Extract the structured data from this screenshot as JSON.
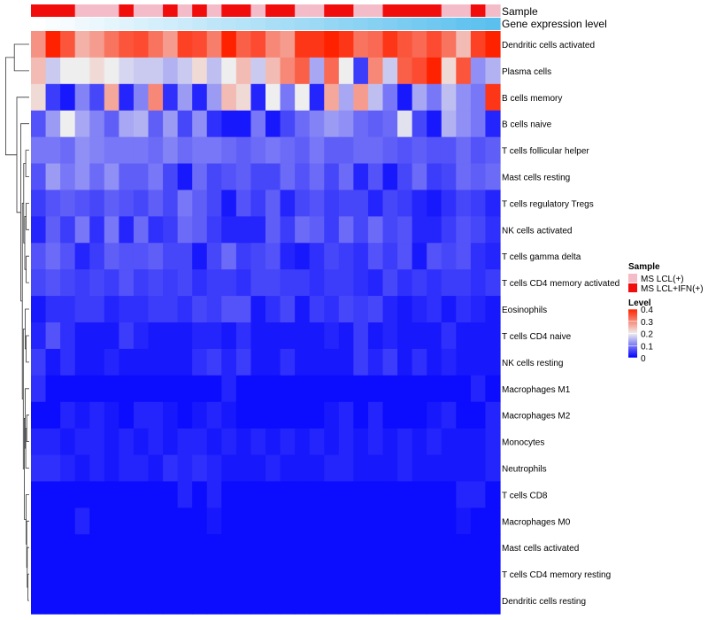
{
  "chart_data": {
    "type": "heatmap",
    "title": "",
    "annotation_tracks": [
      {
        "label": "Sample",
        "groups": [
          "LCL+IFN",
          "LCL+IFN",
          "LCL+IFN",
          "LCL",
          "LCL",
          "LCL",
          "LCL+IFN",
          "LCL",
          "LCL",
          "LCL+IFN",
          "LCL",
          "LCL+IFN",
          "LCL",
          "LCL+IFN",
          "LCL+IFN",
          "LCL",
          "LCL+IFN",
          "LCL+IFN",
          "LCL",
          "LCL",
          "LCL+IFN",
          "LCL+IFN",
          "LCL",
          "LCL",
          "LCL+IFN",
          "LCL+IFN",
          "LCL+IFN",
          "LCL+IFN",
          "LCL",
          "LCL",
          "LCL+IFN",
          "LCL"
        ]
      },
      {
        "label": "Gene expression level",
        "values": [
          0.0,
          0.03,
          0.06,
          0.1,
          0.13,
          0.16,
          0.19,
          0.23,
          0.26,
          0.29,
          0.32,
          0.35,
          0.39,
          0.42,
          0.45,
          0.48,
          0.52,
          0.55,
          0.58,
          0.61,
          0.65,
          0.68,
          0.71,
          0.74,
          0.77,
          0.81,
          0.84,
          0.87,
          0.9,
          0.94,
          0.97,
          1.0
        ]
      }
    ],
    "rows": [
      "Dendritic cells activated",
      "Plasma cells",
      "B cells memory",
      "B cells naive",
      "T cells follicular helper",
      "Mast cells resting",
      "T cells regulatory  Tregs",
      "NK cells activated",
      "T cells gamma delta",
      "T cells CD4 memory activated",
      "Eosinophils",
      "T cells CD4 naive",
      "NK cells resting",
      "Macrophages M1",
      "Macrophages M2",
      "Monocytes",
      "Neutrophils",
      "T cells CD8",
      "Macrophages M0",
      "Mast cells activated",
      "T cells CD4 memory resting",
      "Dendritic cells resting"
    ],
    "values": [
      [
        0.29,
        0.4,
        0.35,
        0.26,
        0.28,
        0.32,
        0.35,
        0.36,
        0.32,
        0.28,
        0.37,
        0.36,
        0.31,
        0.4,
        0.34,
        0.36,
        0.3,
        0.28,
        0.38,
        0.38,
        0.4,
        0.38,
        0.32,
        0.33,
        0.38,
        0.35,
        0.33,
        0.36,
        0.32,
        0.25,
        0.37,
        0.42
      ],
      [
        0.25,
        0.17,
        0.2,
        0.2,
        0.22,
        0.2,
        0.18,
        0.17,
        0.17,
        0.15,
        0.17,
        0.22,
        0.16,
        0.2,
        0.25,
        0.17,
        0.25,
        0.3,
        0.34,
        0.14,
        0.33,
        0.2,
        0.05,
        0.3,
        0.17,
        0.34,
        0.36,
        0.41,
        0.22,
        0.35,
        0.12,
        0.15
      ],
      [
        0.22,
        0.05,
        0.02,
        0.11,
        0.06,
        0.27,
        0.03,
        0.11,
        0.3,
        0.04,
        0.13,
        0.03,
        0.13,
        0.25,
        0.22,
        0.03,
        0.2,
        0.1,
        0.2,
        0.03,
        0.27,
        0.14,
        0.28,
        0.16,
        0.1,
        0.02,
        0.14,
        0.1,
        0.16,
        0.12,
        0.1,
        0.38
      ],
      [
        0.07,
        0.13,
        0.2,
        0.14,
        0.11,
        0.08,
        0.14,
        0.15,
        0.08,
        0.13,
        0.06,
        0.12,
        0.04,
        0.02,
        0.02,
        0.1,
        0.02,
        0.06,
        0.09,
        0.11,
        0.13,
        0.12,
        0.09,
        0.08,
        0.09,
        0.19,
        0.06,
        0.02,
        0.15,
        0.12,
        0.1,
        0.03
      ],
      [
        0.1,
        0.1,
        0.09,
        0.12,
        0.11,
        0.1,
        0.1,
        0.1,
        0.09,
        0.11,
        0.09,
        0.1,
        0.1,
        0.09,
        0.08,
        0.09,
        0.1,
        0.09,
        0.08,
        0.1,
        0.08,
        0.08,
        0.09,
        0.09,
        0.08,
        0.07,
        0.08,
        0.07,
        0.07,
        0.09,
        0.07,
        0.08
      ],
      [
        0.07,
        0.13,
        0.1,
        0.12,
        0.09,
        0.12,
        0.08,
        0.08,
        0.1,
        0.06,
        0.02,
        0.09,
        0.06,
        0.07,
        0.08,
        0.06,
        0.06,
        0.09,
        0.07,
        0.09,
        0.06,
        0.09,
        0.03,
        0.07,
        0.02,
        0.06,
        0.09,
        0.05,
        0.06,
        0.09,
        0.08,
        0.09
      ],
      [
        0.05,
        0.07,
        0.08,
        0.07,
        0.06,
        0.08,
        0.07,
        0.06,
        0.08,
        0.06,
        0.1,
        0.08,
        0.06,
        0.02,
        0.07,
        0.05,
        0.08,
        0.03,
        0.06,
        0.07,
        0.05,
        0.06,
        0.06,
        0.03,
        0.06,
        0.05,
        0.03,
        0.02,
        0.04,
        0.06,
        0.05,
        0.03
      ],
      [
        0.03,
        0.08,
        0.05,
        0.1,
        0.04,
        0.1,
        0.03,
        0.09,
        0.04,
        0.05,
        0.09,
        0.08,
        0.05,
        0.03,
        0.03,
        0.03,
        0.08,
        0.05,
        0.09,
        0.08,
        0.05,
        0.09,
        0.06,
        0.09,
        0.06,
        0.07,
        0.03,
        0.03,
        0.05,
        0.07,
        0.06,
        0.04
      ],
      [
        0.07,
        0.09,
        0.07,
        0.03,
        0.05,
        0.08,
        0.07,
        0.07,
        0.08,
        0.06,
        0.06,
        0.02,
        0.06,
        0.09,
        0.05,
        0.06,
        0.07,
        0.03,
        0.02,
        0.04,
        0.06,
        0.05,
        0.04,
        0.07,
        0.05,
        0.07,
        0.02,
        0.07,
        0.06,
        0.07,
        0.04,
        0.03
      ],
      [
        0.06,
        0.07,
        0.06,
        0.05,
        0.06,
        0.05,
        0.07,
        0.05,
        0.06,
        0.05,
        0.06,
        0.04,
        0.05,
        0.05,
        0.04,
        0.06,
        0.06,
        0.05,
        0.05,
        0.04,
        0.05,
        0.05,
        0.04,
        0.03,
        0.06,
        0.04,
        0.05,
        0.04,
        0.05,
        0.05,
        0.04,
        0.05
      ],
      [
        0.02,
        0.04,
        0.04,
        0.05,
        0.05,
        0.03,
        0.04,
        0.04,
        0.05,
        0.05,
        0.04,
        0.06,
        0.05,
        0.07,
        0.07,
        0.02,
        0.04,
        0.06,
        0.02,
        0.05,
        0.04,
        0.06,
        0.05,
        0.06,
        0.03,
        0.02,
        0.03,
        0.04,
        0.02,
        0.04,
        0.03,
        0.02
      ],
      [
        0.03,
        0.07,
        0.04,
        0.02,
        0.02,
        0.02,
        0.05,
        0.03,
        0.02,
        0.02,
        0.02,
        0.03,
        0.03,
        0.02,
        0.04,
        0.02,
        0.02,
        0.02,
        0.02,
        0.02,
        0.03,
        0.02,
        0.05,
        0.02,
        0.03,
        0.02,
        0.02,
        0.02,
        0.04,
        0.02,
        0.02,
        0.02
      ],
      [
        0.05,
        0.02,
        0.04,
        0.02,
        0.02,
        0.03,
        0.02,
        0.02,
        0.02,
        0.02,
        0.02,
        0.04,
        0.05,
        0.03,
        0.05,
        0.02,
        0.02,
        0.04,
        0.02,
        0.02,
        0.02,
        0.02,
        0.05,
        0.03,
        0.05,
        0.02,
        0.04,
        0.02,
        0.03,
        0.02,
        0.02,
        0.02
      ],
      [
        0.04,
        0.01,
        0.01,
        0.01,
        0.01,
        0.01,
        0.01,
        0.01,
        0.01,
        0.01,
        0.01,
        0.01,
        0.01,
        0.03,
        0.01,
        0.01,
        0.01,
        0.01,
        0.01,
        0.01,
        0.01,
        0.01,
        0.01,
        0.01,
        0.01,
        0.01,
        0.01,
        0.01,
        0.01,
        0.01,
        0.03,
        0.01
      ],
      [
        0.01,
        0.01,
        0.03,
        0.02,
        0.03,
        0.02,
        0.01,
        0.03,
        0.03,
        0.02,
        0.01,
        0.02,
        0.03,
        0.02,
        0.01,
        0.01,
        0.01,
        0.01,
        0.01,
        0.01,
        0.02,
        0.03,
        0.01,
        0.03,
        0.01,
        0.01,
        0.01,
        0.02,
        0.03,
        0.01,
        0.01,
        0.03
      ],
      [
        0.03,
        0.03,
        0.02,
        0.03,
        0.03,
        0.02,
        0.03,
        0.02,
        0.03,
        0.02,
        0.03,
        0.03,
        0.02,
        0.03,
        0.02,
        0.03,
        0.02,
        0.03,
        0.02,
        0.03,
        0.02,
        0.03,
        0.02,
        0.03,
        0.02,
        0.03,
        0.02,
        0.03,
        0.02,
        0.02,
        0.02,
        0.03
      ],
      [
        0.04,
        0.04,
        0.03,
        0.02,
        0.03,
        0.02,
        0.03,
        0.03,
        0.02,
        0.04,
        0.03,
        0.04,
        0.03,
        0.02,
        0.02,
        0.02,
        0.03,
        0.02,
        0.02,
        0.02,
        0.03,
        0.03,
        0.02,
        0.02,
        0.02,
        0.03,
        0.02,
        0.02,
        0.02,
        0.02,
        0.02,
        0.03
      ],
      [
        0.01,
        0.01,
        0.01,
        0.01,
        0.01,
        0.01,
        0.01,
        0.01,
        0.01,
        0.01,
        0.03,
        0.01,
        0.03,
        0.01,
        0.01,
        0.01,
        0.01,
        0.01,
        0.01,
        0.01,
        0.01,
        0.01,
        0.01,
        0.01,
        0.01,
        0.01,
        0.01,
        0.01,
        0.01,
        0.03,
        0.03,
        0.01
      ],
      [
        0.01,
        0.01,
        0.01,
        0.03,
        0.01,
        0.01,
        0.01,
        0.01,
        0.01,
        0.01,
        0.01,
        0.01,
        0.02,
        0.01,
        0.01,
        0.01,
        0.01,
        0.01,
        0.01,
        0.01,
        0.01,
        0.01,
        0.01,
        0.01,
        0.01,
        0.01,
        0.01,
        0.01,
        0.01,
        0.02,
        0.01,
        0.01
      ],
      [
        0.01,
        0.01,
        0.01,
        0.01,
        0.01,
        0.01,
        0.01,
        0.01,
        0.01,
        0.01,
        0.01,
        0.01,
        0.01,
        0.01,
        0.01,
        0.01,
        0.01,
        0.01,
        0.01,
        0.01,
        0.01,
        0.01,
        0.01,
        0.01,
        0.01,
        0.01,
        0.01,
        0.01,
        0.01,
        0.01,
        0.01,
        0.01
      ],
      [
        0.01,
        0.01,
        0.01,
        0.01,
        0.01,
        0.01,
        0.01,
        0.01,
        0.01,
        0.01,
        0.01,
        0.01,
        0.01,
        0.01,
        0.01,
        0.01,
        0.01,
        0.01,
        0.01,
        0.01,
        0.01,
        0.01,
        0.01,
        0.01,
        0.01,
        0.01,
        0.01,
        0.01,
        0.01,
        0.01,
        0.01,
        0.01
      ],
      [
        0.01,
        0.01,
        0.01,
        0.01,
        0.01,
        0.01,
        0.01,
        0.01,
        0.01,
        0.01,
        0.01,
        0.01,
        0.01,
        0.01,
        0.01,
        0.01,
        0.01,
        0.01,
        0.01,
        0.01,
        0.01,
        0.01,
        0.01,
        0.01,
        0.01,
        0.01,
        0.01,
        0.01,
        0.01,
        0.01,
        0.01,
        0.01
      ]
    ],
    "row_dendrogram": true,
    "legend": {
      "sample_title": "Sample",
      "sample_entries": [
        {
          "label": "MS LCL(+)",
          "color": "#F4BBC9"
        },
        {
          "label": "MS LCL+IFN(+)",
          "color": "#F20D0D"
        }
      ],
      "level_title": "Level",
      "level_ticks": [
        "0.4",
        "0.3",
        "0.2",
        "0.1",
        "0"
      ],
      "level_range": [
        0,
        0.4
      ]
    },
    "colors": {
      "low": "#0000FF",
      "mid": "#EEEEEE",
      "high": "#FF2200",
      "gene_track_start": "#FFFFFF",
      "gene_track_end": "#5BC0EE"
    }
  }
}
